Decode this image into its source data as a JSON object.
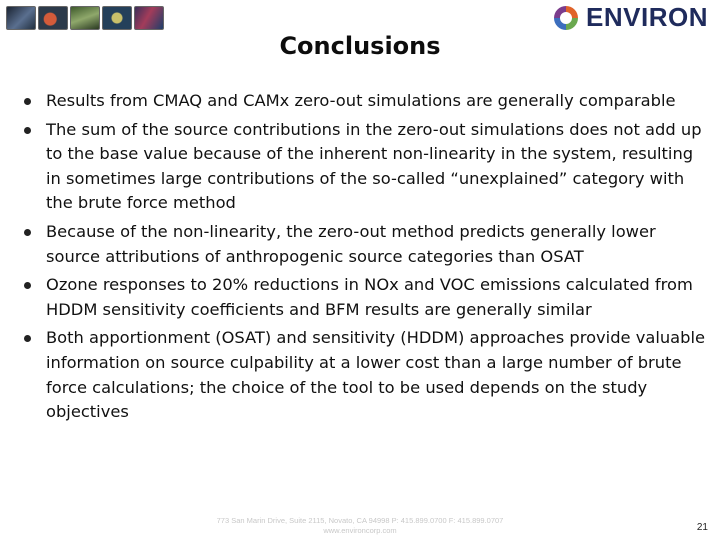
{
  "header": {
    "thumbnails": [
      "image-1",
      "image-2",
      "image-3",
      "image-4",
      "image-5"
    ],
    "logo": {
      "text": "ENVIRON",
      "colors": [
        "#e0632a",
        "#6aa84f",
        "#3c6ebd",
        "#7b3c8c"
      ]
    }
  },
  "slide": {
    "title": "Conclusions",
    "bullets": [
      "Results from CMAQ and CAMx zero-out simulations are generally comparable",
      "The sum of the source contributions in the zero-out simulations does not add up to the base value because of the inherent non-linearity in the system, resulting in sometimes large contributions of the so-called “unexplained” category with the brute force method",
      "Because of the non-linearity, the zero-out method predicts generally lower source attributions of anthropogenic source categories than OSAT",
      "Ozone responses to 20% reductions in NOx and VOC emissions calculated from HDDM sensitivity coefficients and BFM results are generally similar",
      "Both apportionment (OSAT) and sensitivity (HDDM) approaches provide valuable information on source culpability at a lower cost than a large number of brute force calculations; the choice of the tool to be used depends on the study objectives"
    ]
  },
  "footer": {
    "line1": "773 San Marin Drive, Suite 2115, Novato, CA 94998  P: 415.899.0700  F: 415.899.0707",
    "line2": "www.environcorp.com",
    "page_number": "21"
  }
}
